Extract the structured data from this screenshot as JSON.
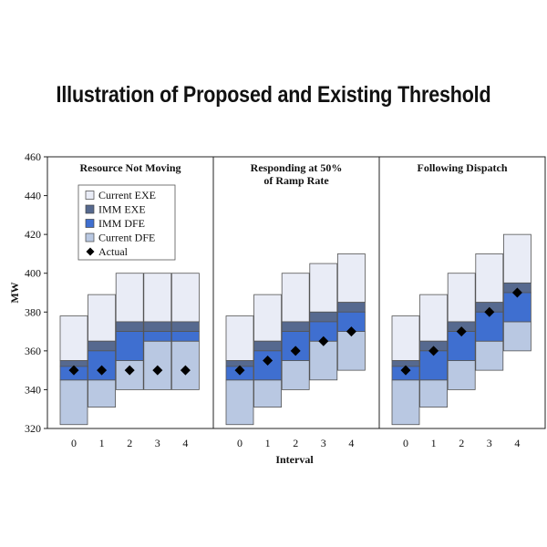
{
  "title": "Illustration of Proposed and Existing Threshold",
  "chart_data": {
    "type": "bar",
    "title": "Illustration of Proposed and Existing Threshold",
    "xlabel": "Interval",
    "ylabel": "MW",
    "ylim": [
      320,
      460
    ],
    "yticks": [
      320,
      340,
      360,
      380,
      400,
      420,
      440,
      460
    ],
    "grid": false,
    "legend": {
      "placement": "top-left of first panel",
      "entries": [
        {
          "name": "Current EXE",
          "color": "#e9ecf6",
          "marker": "square"
        },
        {
          "name": "IMM EXE",
          "color": "#56698f",
          "marker": "square"
        },
        {
          "name": "IMM DFE",
          "color": "#3f6fd0",
          "marker": "square"
        },
        {
          "name": "Current DFE",
          "color": "#b9c8e2",
          "marker": "square"
        },
        {
          "name": "Actual",
          "color": "#000000",
          "marker": "diamond"
        }
      ]
    },
    "colors": {
      "current_exe": "#e9ecf6",
      "imm_exe": "#56698f",
      "imm_dfe": "#3f6fd0",
      "current_dfe": "#b9c8e2",
      "actual": "#000000",
      "border": "#555555"
    },
    "panels": [
      {
        "title": "Resource Not Moving",
        "categories": [
          "0",
          "1",
          "2",
          "3",
          "4"
        ],
        "actual": [
          350,
          350,
          350,
          350,
          350
        ],
        "current_exe": [
          [
            355,
            378
          ],
          [
            365,
            389
          ],
          [
            375,
            400
          ],
          [
            375,
            400
          ],
          [
            375,
            400
          ]
        ],
        "imm_exe": [
          [
            352,
            355
          ],
          [
            360,
            365
          ],
          [
            370,
            375
          ],
          [
            370,
            375
          ],
          [
            370,
            375
          ]
        ],
        "imm_dfe": [
          [
            345,
            352
          ],
          [
            345,
            360
          ],
          [
            355,
            370
          ],
          [
            365,
            370
          ],
          [
            365,
            370
          ]
        ],
        "current_dfe": [
          [
            322,
            345
          ],
          [
            331,
            345
          ],
          [
            340,
            355
          ],
          [
            340,
            365
          ],
          [
            340,
            365
          ]
        ]
      },
      {
        "title": "Responding at 50% of Ramp Rate",
        "title_lines": [
          "Responding at 50%",
          "of Ramp Rate"
        ],
        "categories": [
          "0",
          "1",
          "2",
          "3",
          "4"
        ],
        "actual": [
          350,
          355,
          360,
          365,
          370
        ],
        "current_exe": [
          [
            355,
            378
          ],
          [
            365,
            389
          ],
          [
            375,
            400
          ],
          [
            380,
            405
          ],
          [
            385,
            410
          ]
        ],
        "imm_exe": [
          [
            352,
            355
          ],
          [
            360,
            365
          ],
          [
            370,
            375
          ],
          [
            375,
            380
          ],
          [
            380,
            385
          ]
        ],
        "imm_dfe": [
          [
            345,
            352
          ],
          [
            345,
            360
          ],
          [
            355,
            370
          ],
          [
            365,
            375
          ],
          [
            370,
            380
          ]
        ],
        "current_dfe": [
          [
            322,
            345
          ],
          [
            331,
            345
          ],
          [
            340,
            355
          ],
          [
            345,
            365
          ],
          [
            350,
            370
          ]
        ]
      },
      {
        "title": "Following Dispatch",
        "categories": [
          "0",
          "1",
          "2",
          "3",
          "4"
        ],
        "actual": [
          350,
          360,
          370,
          380,
          390
        ],
        "current_exe": [
          [
            355,
            378
          ],
          [
            365,
            389
          ],
          [
            375,
            400
          ],
          [
            385,
            410
          ],
          [
            395,
            420
          ]
        ],
        "imm_exe": [
          [
            352,
            355
          ],
          [
            360,
            365
          ],
          [
            370,
            375
          ],
          [
            380,
            385
          ],
          [
            390,
            395
          ]
        ],
        "imm_dfe": [
          [
            345,
            352
          ],
          [
            345,
            360
          ],
          [
            355,
            370
          ],
          [
            365,
            380
          ],
          [
            375,
            390
          ]
        ],
        "current_dfe": [
          [
            322,
            345
          ],
          [
            331,
            345
          ],
          [
            340,
            355
          ],
          [
            350,
            365
          ],
          [
            360,
            375
          ]
        ]
      }
    ]
  }
}
